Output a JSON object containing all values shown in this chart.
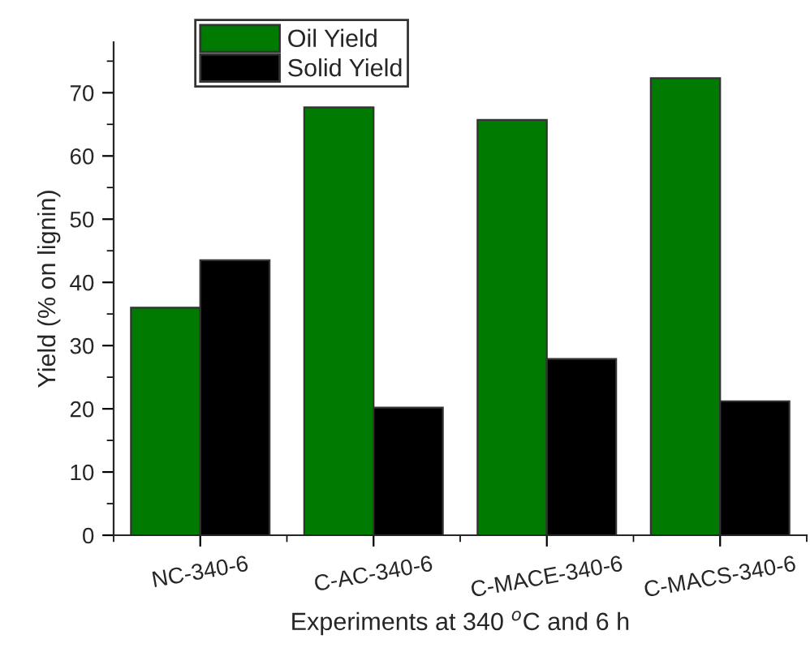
{
  "chart_data": {
    "type": "bar",
    "xlabel": "Experiments at 340 $^{o}$C and 6 h",
    "ylabel": "Yield (% on lignin)",
    "categories": [
      "NC-340-6",
      "C-AC-340-6",
      "C-MACE-340-6",
      "C-MACS-340-6"
    ],
    "series": [
      {
        "name": "Oil Yield",
        "color": "#007a00",
        "values": [
          36.0,
          67.7,
          65.7,
          72.3
        ]
      },
      {
        "name": "Solid Yield",
        "color": "#000000",
        "values": [
          43.5,
          20.2,
          27.9,
          21.2
        ]
      }
    ],
    "ylim": [
      0,
      78
    ],
    "yticks": [
      0,
      10,
      20,
      30,
      40,
      50,
      60,
      70
    ],
    "grid": false,
    "legend": "top left"
  }
}
